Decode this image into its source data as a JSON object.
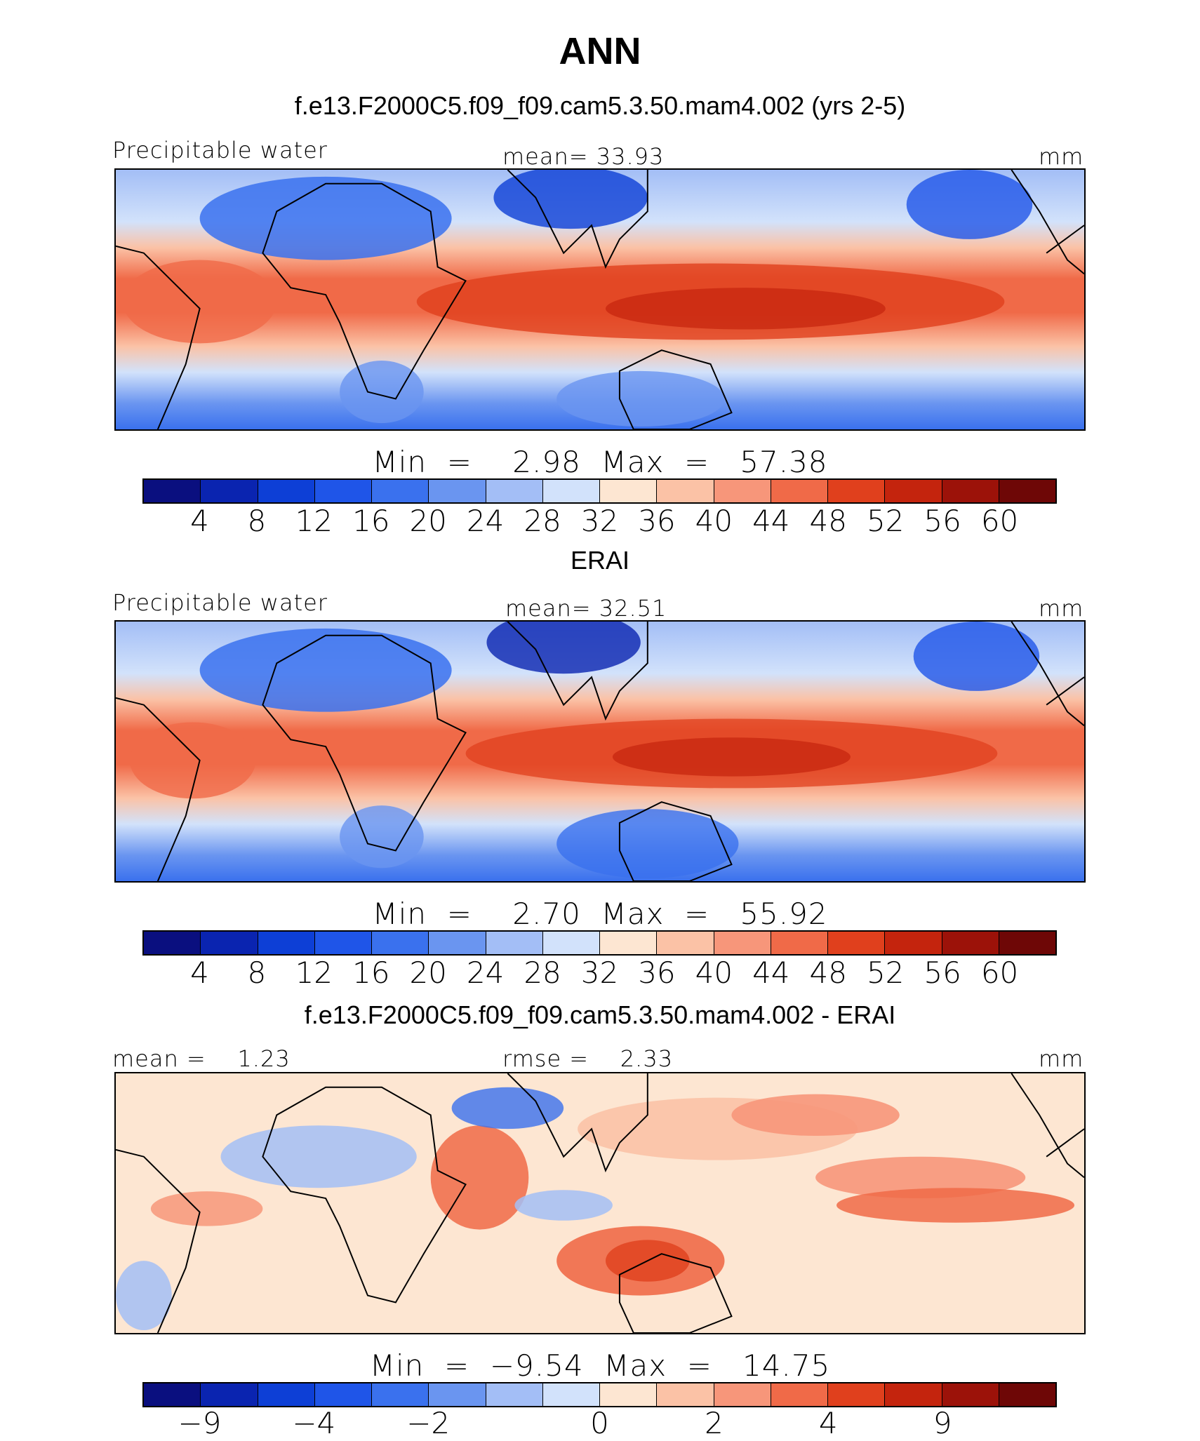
{
  "title": "ANN",
  "panels": [
    {
      "subtitle": "f.e13.F2000C5.f09_f09.cam5.3.50.mam4.002 (yrs 2-5)",
      "left_label": "Precipitable water",
      "center_label": "mean=   33.93",
      "units": "mm",
      "minmax": "Min  =    2.98  Max  =   57.38",
      "kind": "model"
    },
    {
      "subtitle": "ERAI",
      "left_label": "Precipitable water",
      "center_label": "mean=   32.51",
      "units": "mm",
      "minmax": "Min  =    2.70  Max  =   55.92",
      "kind": "obs"
    },
    {
      "subtitle": "f.e13.F2000C5.f09_f09.cam5.3.50.mam4.002 - ERAI",
      "left_label": "mean =    1.23",
      "center_label": "rmse =    2.33",
      "units": "mm",
      "minmax": "Min  =  −9.54  Max  =   14.75",
      "kind": "diff"
    }
  ],
  "colorbar_abs": {
    "colors": [
      "#0a0f7f",
      "#0a24b0",
      "#0d3fd6",
      "#1f55e8",
      "#3a71ee",
      "#6a95f0",
      "#a3bef6",
      "#d2e2fb",
      "#fde6d2",
      "#fbc2a6",
      "#f7967a",
      "#f06a48",
      "#e0401d",
      "#c4240d",
      "#9c1209",
      "#6e0706"
    ],
    "tick_labels": [
      "4",
      "8",
      "12",
      "16",
      "20",
      "24",
      "28",
      "32",
      "36",
      "40",
      "44",
      "48",
      "52",
      "56",
      "60"
    ]
  },
  "colorbar_diff": {
    "colors": [
      "#0a0f7f",
      "#0a24b0",
      "#0d3fd6",
      "#1f55e8",
      "#3a71ee",
      "#6a95f0",
      "#a3bef6",
      "#d2e2fb",
      "#fde6d2",
      "#fbc2a6",
      "#f7967a",
      "#f06a48",
      "#e0401d",
      "#c4240d",
      "#9c1209",
      "#6e0706"
    ],
    "tick_labels": [
      "−9",
      "−4",
      "−2",
      "0",
      "2",
      "4",
      "9"
    ]
  }
}
